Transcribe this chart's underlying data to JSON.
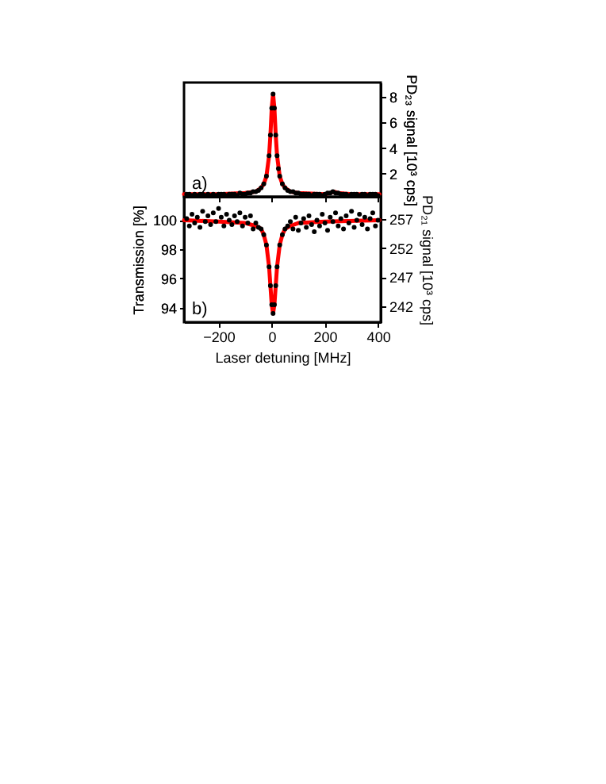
{
  "chart_data": [
    {
      "type": "scatter",
      "ylabel": "PD₂₃ signal [10³ cps]",
      "xlim": [
        -330,
        410
      ],
      "xticks": [
        -200,
        0,
        200,
        400
      ],
      "ylim": [
        0.2,
        9.1
      ],
      "yticks": [
        2,
        4,
        6,
        8
      ],
      "tick_labels": "y",
      "annotations": [
        "a)"
      ],
      "series": [
        {
          "marker": "circle",
          "color": "#000000",
          "x": [
            -320,
            -310,
            -300,
            -290,
            -280,
            -270,
            -260,
            -250,
            -240,
            -230,
            -220,
            -210,
            -200,
            -190,
            -180,
            -170,
            -160,
            -150,
            -140,
            -130,
            -120,
            -110,
            -100,
            -90,
            -80,
            -70,
            -60,
            -50,
            -40,
            -30,
            -20,
            -10,
            -5,
            0,
            5,
            10,
            15,
            20,
            25,
            30,
            40,
            50,
            60,
            70,
            80,
            90,
            100,
            110,
            120,
            130,
            140,
            150,
            160,
            170,
            180,
            190,
            200,
            210,
            220,
            230,
            240,
            250,
            260,
            270,
            280,
            290,
            300,
            310,
            320,
            330,
            340,
            350,
            360,
            370,
            380,
            390,
            400
          ],
          "values": [
            0.4,
            0.4,
            0.3,
            0.4,
            0.3,
            0.4,
            0.4,
            0.3,
            0.4,
            0.3,
            0.4,
            0.3,
            0.4,
            0.4,
            0.4,
            0.3,
            0.4,
            0.4,
            0.4,
            0.3,
            0.5,
            0.4,
            0.4,
            0.5,
            0.5,
            0.6,
            0.6,
            0.7,
            0.9,
            1.2,
            1.8,
            3.4,
            5.0,
            7.1,
            8.2,
            7.1,
            5.0,
            3.4,
            2.4,
            1.8,
            1.2,
            0.9,
            0.7,
            0.6,
            0.6,
            0.5,
            0.5,
            0.4,
            0.4,
            0.4,
            0.4,
            0.3,
            0.4,
            0.4,
            0.4,
            0.3,
            0.4,
            0.5,
            0.5,
            0.6,
            0.5,
            0.5,
            0.4,
            0.4,
            0.4,
            0.3,
            0.4,
            0.4,
            0.4,
            0.3,
            0.4,
            0.4,
            0.3,
            0.4,
            0.4,
            0.4,
            0.3
          ]
        },
        {
          "type": "line",
          "color": "#ff0000",
          "x": [
            -330,
            -200,
            -100,
            -60,
            -40,
            -30,
            -20,
            -10,
            -5,
            0,
            5,
            10,
            15,
            20,
            30,
            40,
            50,
            70,
            100,
            200,
            220,
            235,
            250,
            300,
            405
          ],
          "values": [
            0.4,
            0.4,
            0.5,
            0.6,
            0.9,
            1.2,
            1.8,
            3.4,
            5.0,
            7.1,
            8.2,
            7.1,
            5.0,
            3.4,
            1.8,
            1.2,
            0.9,
            0.6,
            0.5,
            0.4,
            0.5,
            0.6,
            0.5,
            0.4,
            0.4
          ]
        }
      ]
    },
    {
      "type": "scatter",
      "ylabel": "Transmission [%]",
      "y2label": "PD₂₁ signal [10³ cps]",
      "xlabel": "Laser detuning [MHz]",
      "xlim": [
        -330,
        410
      ],
      "xticks": [
        -200,
        0,
        200,
        400
      ],
      "ylim": [
        93.0,
        101.6
      ],
      "yticks": [
        94,
        96,
        98,
        100
      ],
      "y2lim": [
        239.2,
        260.9
      ],
      "y2ticks": [
        242,
        247,
        252,
        257
      ],
      "annotations": [
        "b)"
      ],
      "series": [
        {
          "marker": "circle",
          "color": "#000000",
          "x": [
            -320,
            -310,
            -300,
            -290,
            -280,
            -270,
            -260,
            -250,
            -240,
            -230,
            -220,
            -210,
            -200,
            -190,
            -180,
            -170,
            -160,
            -150,
            -140,
            -130,
            -120,
            -110,
            -100,
            -90,
            -80,
            -70,
            -60,
            -50,
            -40,
            -30,
            -20,
            -10,
            -5,
            0,
            5,
            10,
            15,
            20,
            30,
            40,
            50,
            60,
            70,
            80,
            90,
            100,
            110,
            120,
            130,
            140,
            150,
            160,
            170,
            180,
            190,
            200,
            210,
            220,
            230,
            240,
            250,
            260,
            270,
            280,
            290,
            300,
            310,
            320,
            330,
            340,
            350,
            360,
            370,
            380,
            390,
            400
          ],
          "values": [
            100.1,
            99.6,
            100.4,
            99.8,
            100.2,
            99.5,
            100.6,
            99.9,
            100.3,
            99.7,
            100.5,
            99.9,
            100.8,
            100.2,
            99.6,
            100.4,
            100.0,
            99.7,
            100.3,
            99.9,
            100.5,
            99.6,
            100.2,
            99.8,
            100.3,
            99.4,
            99.8,
            99.5,
            99.4,
            99.0,
            98.3,
            96.8,
            95.5,
            94.2,
            93.6,
            94.2,
            95.5,
            96.8,
            98.3,
            99.0,
            99.4,
            99.6,
            99.9,
            99.4,
            100.2,
            99.3,
            99.8,
            100.1,
            99.5,
            100.3,
            99.7,
            99.2,
            100.0,
            99.6,
            100.4,
            99.8,
            99.3,
            100.2,
            99.9,
            100.5,
            99.6,
            100.1,
            99.4,
            100.3,
            99.8,
            100.6,
            99.5,
            100.0,
            100.4,
            99.7,
            100.2,
            99.4,
            100.1,
            100.5,
            99.6,
            100.0
          ]
        },
        {
          "type": "line",
          "color": "#ff0000",
          "x": [
            -330,
            -200,
            -100,
            -60,
            -40,
            -30,
            -20,
            -10,
            -5,
            0,
            5,
            10,
            15,
            20,
            30,
            40,
            50,
            70,
            100,
            200,
            405
          ],
          "values": [
            100.0,
            99.9,
            99.8,
            99.6,
            99.4,
            99.0,
            98.3,
            96.8,
            95.5,
            94.2,
            93.6,
            94.2,
            95.5,
            96.8,
            98.3,
            99.0,
            99.4,
            99.6,
            99.8,
            99.9,
            100.0
          ]
        }
      ]
    }
  ]
}
